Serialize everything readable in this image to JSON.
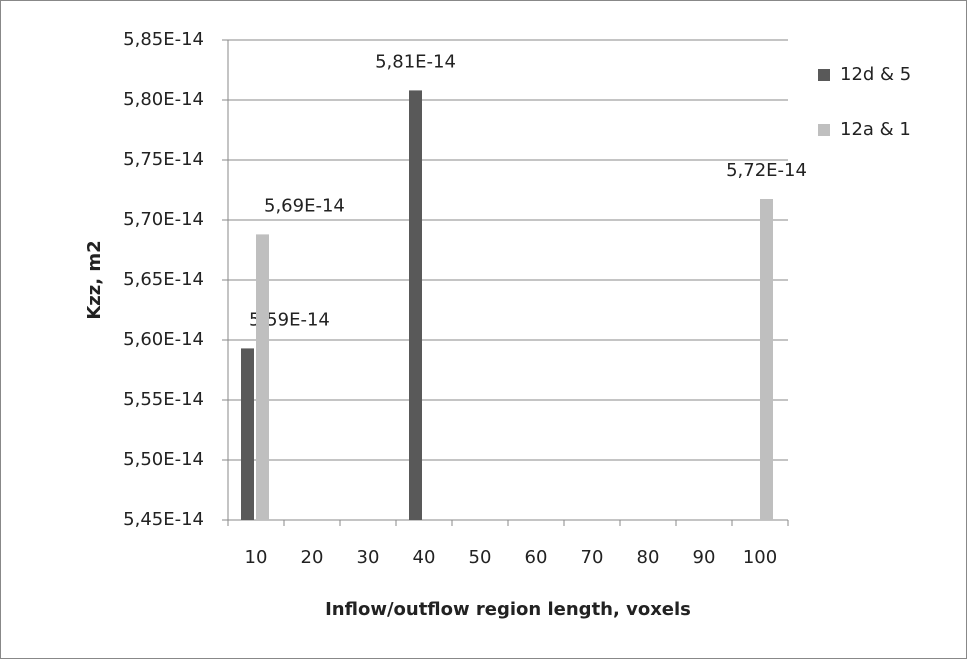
{
  "chart_data": {
    "type": "bar",
    "x_label": "Inflow/outflow  region length, voxels",
    "y_label": "Kzz, m2",
    "categories": [
      "10",
      "20",
      "30",
      "40",
      "50",
      "60",
      "70",
      "80",
      "90",
      "100"
    ],
    "series": [
      {
        "name": "12d & 5",
        "color": "#595959",
        "values": [
          5.593e-14,
          null,
          null,
          5.808e-14,
          null,
          null,
          null,
          null,
          null,
          null
        ],
        "value_labels": [
          "5,59E-14",
          null,
          null,
          "5,81E-14",
          null,
          null,
          null,
          null,
          null,
          null
        ]
      },
      {
        "name": "12a & 1",
        "color": "#bfbfbf",
        "values": [
          5.688e-14,
          null,
          null,
          null,
          null,
          null,
          null,
          null,
          null,
          5.7175e-14
        ],
        "value_labels": [
          "5,69E-14",
          null,
          null,
          null,
          null,
          null,
          null,
          null,
          null,
          "5,72E-14"
        ]
      }
    ],
    "ylim": [
      5.45e-14,
      5.85e-14
    ],
    "yticks": [
      {
        "value": 5.45e-14,
        "label": "5,45E-14"
      },
      {
        "value": 5.5e-14,
        "label": "5,50E-14"
      },
      {
        "value": 5.55e-14,
        "label": "5,55E-14"
      },
      {
        "value": 5.6e-14,
        "label": "5,60E-14"
      },
      {
        "value": 5.65e-14,
        "label": "5,65E-14"
      },
      {
        "value": 5.7e-14,
        "label": "5,70E-14"
      },
      {
        "value": 5.75e-14,
        "label": "5,75E-14"
      },
      {
        "value": 5.8e-14,
        "label": "5,80E-14"
      },
      {
        "value": 5.85e-14,
        "label": "5,85E-14"
      }
    ],
    "grid": true,
    "legend": "right"
  }
}
